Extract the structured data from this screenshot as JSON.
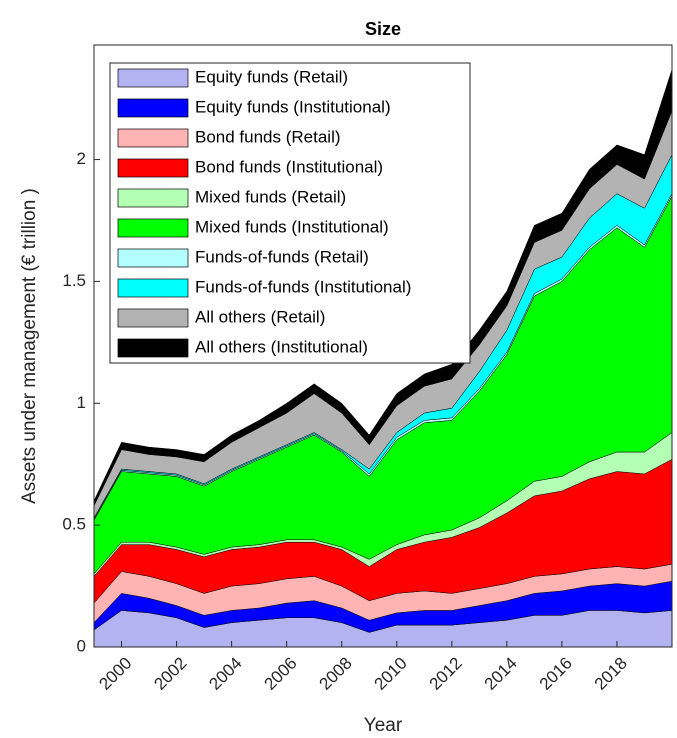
{
  "chart_data": {
    "type": "stacked_area",
    "title": "Size",
    "x_label": "Year",
    "y_label": "Assets under management (€ trillion )",
    "x": [
      1999,
      2000,
      2001,
      2002,
      2003,
      2004,
      2005,
      2006,
      2007,
      2008,
      2009,
      2010,
      2011,
      2012,
      2013,
      2014,
      2015,
      2016,
      2017,
      2018,
      2019,
      2020
    ],
    "series": [
      {
        "name": "Equity funds (Retail)",
        "color": "#b3b3f2",
        "values": [
          0.07,
          0.15,
          0.14,
          0.12,
          0.08,
          0.1,
          0.11,
          0.12,
          0.12,
          0.1,
          0.06,
          0.09,
          0.09,
          0.09,
          0.1,
          0.11,
          0.13,
          0.13,
          0.15,
          0.15,
          0.14,
          0.15
        ]
      },
      {
        "name": "Equity funds (Institutional)",
        "color": "#0000ff",
        "values": [
          0.03,
          0.07,
          0.06,
          0.05,
          0.05,
          0.05,
          0.05,
          0.06,
          0.07,
          0.06,
          0.05,
          0.05,
          0.06,
          0.06,
          0.07,
          0.08,
          0.09,
          0.1,
          0.1,
          0.11,
          0.11,
          0.12
        ]
      },
      {
        "name": "Bond funds (Retail)",
        "color": "#ffb3b3",
        "values": [
          0.08,
          0.09,
          0.09,
          0.09,
          0.09,
          0.1,
          0.1,
          0.1,
          0.1,
          0.09,
          0.08,
          0.08,
          0.08,
          0.07,
          0.07,
          0.07,
          0.07,
          0.07,
          0.07,
          0.07,
          0.07,
          0.07
        ]
      },
      {
        "name": "Bond funds (Institutional)",
        "color": "#ff0000",
        "values": [
          0.11,
          0.11,
          0.13,
          0.14,
          0.15,
          0.15,
          0.15,
          0.15,
          0.14,
          0.15,
          0.14,
          0.18,
          0.2,
          0.23,
          0.25,
          0.29,
          0.33,
          0.34,
          0.37,
          0.39,
          0.39,
          0.43
        ]
      },
      {
        "name": "Mixed funds (Retail)",
        "color": "#b3ffb3",
        "values": [
          0.01,
          0.01,
          0.01,
          0.01,
          0.01,
          0.01,
          0.01,
          0.01,
          0.01,
          0.01,
          0.03,
          0.02,
          0.03,
          0.03,
          0.04,
          0.05,
          0.06,
          0.06,
          0.07,
          0.08,
          0.09,
          0.11
        ]
      },
      {
        "name": "Mixed funds (Institutional)",
        "color": "#00ff00",
        "values": [
          0.22,
          0.29,
          0.28,
          0.29,
          0.28,
          0.31,
          0.35,
          0.38,
          0.43,
          0.39,
          0.34,
          0.43,
          0.46,
          0.45,
          0.52,
          0.6,
          0.76,
          0.8,
          0.87,
          0.92,
          0.84,
          0.97
        ]
      },
      {
        "name": "Funds-of-funds (Retail)",
        "color": "#b3ffff",
        "values": [
          0.005,
          0.005,
          0.005,
          0.005,
          0.005,
          0.005,
          0.005,
          0.005,
          0.005,
          0.005,
          0.01,
          0.01,
          0.01,
          0.01,
          0.01,
          0.01,
          0.01,
          0.01,
          0.01,
          0.01,
          0.01,
          0.01
        ]
      },
      {
        "name": "Funds-of-funds (Institutional)",
        "color": "#00ffff",
        "values": [
          0.005,
          0.005,
          0.005,
          0.005,
          0.005,
          0.005,
          0.005,
          0.005,
          0.005,
          0.005,
          0.02,
          0.02,
          0.03,
          0.04,
          0.07,
          0.09,
          0.1,
          0.09,
          0.12,
          0.13,
          0.15,
          0.16
        ]
      },
      {
        "name": "All others (Retail)",
        "color": "#b3b3b3",
        "values": [
          0.05,
          0.08,
          0.07,
          0.07,
          0.09,
          0.11,
          0.12,
          0.13,
          0.16,
          0.15,
          0.1,
          0.11,
          0.11,
          0.12,
          0.11,
          0.1,
          0.11,
          0.11,
          0.12,
          0.12,
          0.12,
          0.18
        ]
      },
      {
        "name": "All others (Institutional)",
        "color": "#000000",
        "values": [
          0.02,
          0.03,
          0.03,
          0.03,
          0.03,
          0.03,
          0.03,
          0.04,
          0.04,
          0.04,
          0.04,
          0.05,
          0.05,
          0.06,
          0.06,
          0.06,
          0.07,
          0.07,
          0.08,
          0.08,
          0.1,
          0.17
        ]
      }
    ],
    "xlim": [
      1999,
      2020
    ],
    "xticks": [
      2000,
      2002,
      2004,
      2006,
      2008,
      2010,
      2012,
      2014,
      2016,
      2018
    ],
    "ylim": [
      0,
      2.47
    ],
    "yticks": [
      0,
      0.5,
      1,
      1.5,
      2
    ],
    "grid": false,
    "legend": "upper left"
  }
}
